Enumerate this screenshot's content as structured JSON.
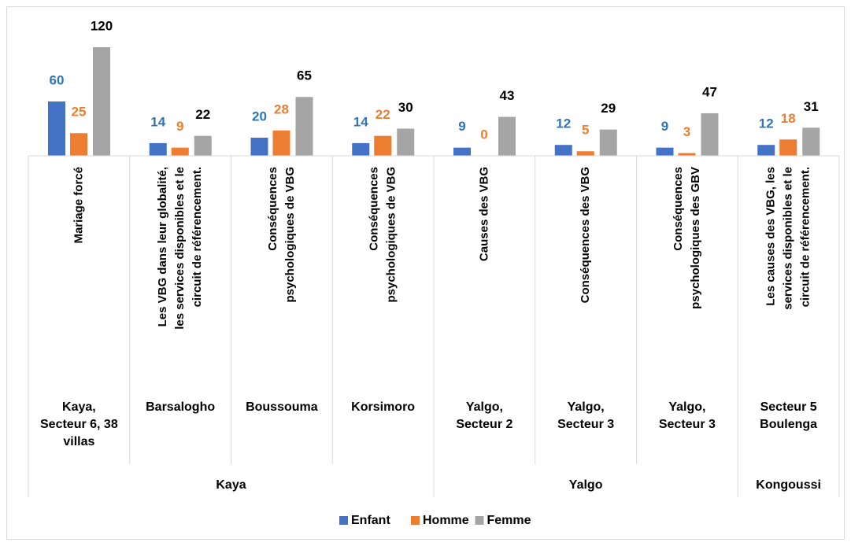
{
  "chart_data": {
    "type": "bar",
    "categories": [
      [
        "Mariage forcé"
      ],
      [
        "Les VBG dans leur globalité,",
        "les services disponibles et le",
        "circuit de référencement."
      ],
      [
        "Conséquences",
        "psychologiques de VBG"
      ],
      [
        "Conséquences",
        "psychologiques de VBG"
      ],
      [
        "Causes des VBG"
      ],
      [
        "Conséquences des VBG"
      ],
      [
        "Conséquences",
        "psychologiques des GBV"
      ],
      [
        "Les causes des VBG, les",
        "services disponibles et le",
        "circuit de référencement."
      ]
    ],
    "localities": [
      [
        "Kaya,",
        "Secteur 6, 38",
        "villas"
      ],
      [
        "Barsalogho"
      ],
      [
        "Boussouma"
      ],
      [
        "Korsimoro"
      ],
      [
        "Yalgo,",
        "Secteur 2"
      ],
      [
        "Yalgo,",
        "Secteur 3"
      ],
      [
        "Yalgo,",
        "Secteur 3"
      ],
      [
        "Secteur 5",
        "Boulenga"
      ]
    ],
    "communes": [
      {
        "name": "Kaya",
        "span": 4
      },
      {
        "name": "Yalgo",
        "span": 3
      },
      {
        "name": "Kongoussi",
        "span": 1
      }
    ],
    "series": [
      {
        "name": "Enfant",
        "color": "#4472c4",
        "label_color": "#2e75b6",
        "values": [
          60,
          14,
          20,
          14,
          9,
          12,
          9,
          12
        ]
      },
      {
        "name": "Homme",
        "color": "#ed7d31",
        "label_color": "#ed7d31",
        "values": [
          25,
          9,
          28,
          22,
          0,
          5,
          3,
          18
        ]
      },
      {
        "name": "Femme",
        "color": "#a5a5a5",
        "label_color": "#000000",
        "values": [
          120,
          22,
          65,
          30,
          43,
          29,
          47,
          31
        ]
      }
    ],
    "legend": "bottom"
  }
}
